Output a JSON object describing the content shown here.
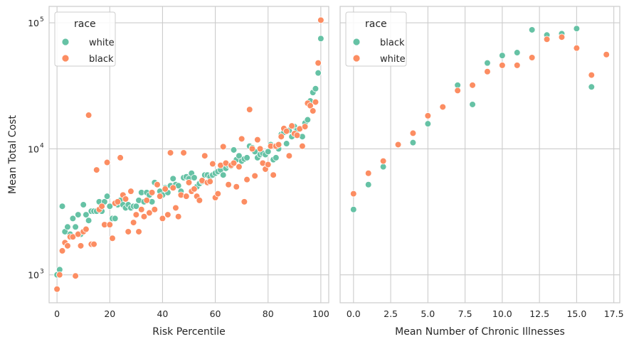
{
  "chart_data": [
    {
      "type": "scatter",
      "xlabel": "Risk Percentile",
      "ylabel": "Mean Total Cost",
      "yscale": "log",
      "xlim": [
        -3,
        103
      ],
      "ylim": [
        600,
        135000
      ],
      "xticks": [
        0,
        20,
        40,
        60,
        80,
        100
      ],
      "yticks": [
        1000,
        10000,
        100000
      ],
      "ytick_labels": [
        {
          "base": "10",
          "exp": "3"
        },
        {
          "base": "10",
          "exp": "4"
        },
        {
          "base": "10",
          "exp": "5"
        }
      ],
      "grid": true,
      "legend": {
        "title": "race",
        "position": "top-left"
      },
      "series": [
        {
          "name": "white",
          "color": "#66c2a5",
          "points": [
            [
              0,
              1000
            ],
            [
              1,
              1100
            ],
            [
              2,
              3500
            ],
            [
              3,
              2200
            ],
            [
              4,
              2400
            ],
            [
              5,
              2100
            ],
            [
              6,
              2800
            ],
            [
              7,
              2400
            ],
            [
              8,
              3000
            ],
            [
              9,
              2100
            ],
            [
              10,
              3600
            ],
            [
              11,
              3000
            ],
            [
              12,
              2700
            ],
            [
              13,
              3200
            ],
            [
              14,
              3200
            ],
            [
              15,
              3200
            ],
            [
              16,
              3800
            ],
            [
              17,
              3200
            ],
            [
              18,
              3800
            ],
            [
              19,
              4200
            ],
            [
              20,
              3500
            ],
            [
              21,
              2800
            ],
            [
              22,
              2800
            ],
            [
              23,
              3600
            ],
            [
              24,
              3900
            ],
            [
              25,
              3600
            ],
            [
              26,
              3400
            ],
            [
              27,
              3600
            ],
            [
              28,
              3400
            ],
            [
              29,
              3500
            ],
            [
              30,
              3500
            ],
            [
              31,
              3900
            ],
            [
              32,
              4500
            ],
            [
              33,
              3800
            ],
            [
              34,
              4500
            ],
            [
              35,
              4300
            ],
            [
              36,
              3800
            ],
            [
              37,
              5400
            ],
            [
              38,
              5200
            ],
            [
              39,
              4600
            ],
            [
              40,
              4300
            ],
            [
              41,
              4900
            ],
            [
              42,
              4500
            ],
            [
              43,
              5100
            ],
            [
              44,
              5800
            ],
            [
              45,
              5200
            ],
            [
              46,
              5100
            ],
            [
              47,
              4600
            ],
            [
              48,
              5900
            ],
            [
              49,
              6000
            ],
            [
              50,
              5800
            ],
            [
              51,
              6400
            ],
            [
              52,
              5900
            ],
            [
              53,
              5000
            ],
            [
              54,
              5300
            ],
            [
              55,
              5500
            ],
            [
              56,
              6200
            ],
            [
              57,
              6200
            ],
            [
              58,
              6000
            ],
            [
              59,
              6200
            ],
            [
              60,
              6400
            ],
            [
              61,
              6600
            ],
            [
              62,
              6800
            ],
            [
              63,
              6200
            ],
            [
              64,
              7000
            ],
            [
              65,
              7400
            ],
            [
              66,
              7300
            ],
            [
              67,
              9800
            ],
            [
              68,
              8200
            ],
            [
              69,
              8800
            ],
            [
              70,
              8000
            ],
            [
              71,
              8300
            ],
            [
              72,
              8500
            ],
            [
              73,
              10500
            ],
            [
              74,
              10200
            ],
            [
              75,
              9500
            ],
            [
              76,
              8500
            ],
            [
              77,
              9000
            ],
            [
              78,
              9200
            ],
            [
              79,
              9000
            ],
            [
              80,
              9500
            ],
            [
              81,
              10800
            ],
            [
              82,
              8200
            ],
            [
              83,
              8500
            ],
            [
              84,
              10000
            ],
            [
              85,
              13000
            ],
            [
              86,
              13500
            ],
            [
              87,
              11000
            ],
            [
              88,
              14000
            ],
            [
              89,
              12500
            ],
            [
              90,
              15000
            ],
            [
              91,
              14000
            ],
            [
              92,
              14500
            ],
            [
              93,
              12500
            ],
            [
              94,
              16000
            ],
            [
              95,
              17000
            ],
            [
              96,
              24000
            ],
            [
              97,
              28000
            ],
            [
              98,
              30000
            ],
            [
              99,
              40000
            ],
            [
              100,
              75000
            ]
          ]
        },
        {
          "name": "black",
          "color": "#fc8d62",
          "points": [
            [
              0,
              770
            ],
            [
              1,
              1000
            ],
            [
              2,
              1550
            ],
            [
              3,
              1800
            ],
            [
              4,
              1700
            ],
            [
              5,
              2000
            ],
            [
              6,
              2000
            ],
            [
              7,
              980
            ],
            [
              8,
              2100
            ],
            [
              9,
              1700
            ],
            [
              10,
              2200
            ],
            [
              11,
              2300
            ],
            [
              12,
              18500
            ],
            [
              13,
              1750
            ],
            [
              14,
              1750
            ],
            [
              15,
              6800
            ],
            [
              16,
              3300
            ],
            [
              17,
              3500
            ],
            [
              18,
              2500
            ],
            [
              19,
              7800
            ],
            [
              20,
              2500
            ],
            [
              21,
              1950
            ],
            [
              22,
              3700
            ],
            [
              23,
              3800
            ],
            [
              24,
              8500
            ],
            [
              25,
              4300
            ],
            [
              26,
              4000
            ],
            [
              27,
              2200
            ],
            [
              28,
              4600
            ],
            [
              29,
              2600
            ],
            [
              30,
              3000
            ],
            [
              31,
              2200
            ],
            [
              32,
              3300
            ],
            [
              33,
              2900
            ],
            [
              34,
              3900
            ],
            [
              35,
              3100
            ],
            [
              36,
              4500
            ],
            [
              37,
              3300
            ],
            [
              38,
              5200
            ],
            [
              39,
              4200
            ],
            [
              40,
              2800
            ],
            [
              41,
              4800
            ],
            [
              42,
              3000
            ],
            [
              43,
              9300
            ],
            [
              44,
              4900
            ],
            [
              45,
              3400
            ],
            [
              46,
              2900
            ],
            [
              47,
              4300
            ],
            [
              48,
              9300
            ],
            [
              49,
              4200
            ],
            [
              50,
              5400
            ],
            [
              51,
              4600
            ],
            [
              52,
              4800
            ],
            [
              53,
              4200
            ],
            [
              54,
              3900
            ],
            [
              55,
              5600
            ],
            [
              56,
              8800
            ],
            [
              57,
              5400
            ],
            [
              58,
              5500
            ],
            [
              59,
              7600
            ],
            [
              60,
              4100
            ],
            [
              61,
              4400
            ],
            [
              62,
              7400
            ],
            [
              63,
              10400
            ],
            [
              64,
              7700
            ],
            [
              65,
              5200
            ],
            [
              66,
              7400
            ],
            [
              67,
              7700
            ],
            [
              68,
              5000
            ],
            [
              69,
              7200
            ],
            [
              70,
              12000
            ],
            [
              71,
              3800
            ],
            [
              72,
              5700
            ],
            [
              73,
              20500
            ],
            [
              74,
              10000
            ],
            [
              75,
              6100
            ],
            [
              76,
              11800
            ],
            [
              77,
              10000
            ],
            [
              78,
              7700
            ],
            [
              79,
              6900
            ],
            [
              80,
              7500
            ],
            [
              81,
              10500
            ],
            [
              82,
              6200
            ],
            [
              83,
              10500
            ],
            [
              84,
              10800
            ],
            [
              85,
              12500
            ],
            [
              86,
              14500
            ],
            [
              87,
              13800
            ],
            [
              88,
              8800
            ],
            [
              89,
              15200
            ],
            [
              90,
              13200
            ],
            [
              91,
              12800
            ],
            [
              92,
              14400
            ],
            [
              93,
              10500
            ],
            [
              94,
              15000
            ],
            [
              95,
              23000
            ],
            [
              96,
              22000
            ],
            [
              97,
              20000
            ],
            [
              98,
              23500
            ],
            [
              99,
              48000
            ],
            [
              100,
              105000
            ]
          ]
        }
      ]
    },
    {
      "type": "scatter",
      "xlabel": "Mean Number of Chronic Illnesses",
      "ylabel": "",
      "yscale": "log",
      "sharey": true,
      "xlim": [
        -0.9,
        17.9
      ],
      "ylim": [
        600,
        135000
      ],
      "xticks": [
        0,
        2.5,
        5,
        7.5,
        10,
        12.5,
        15,
        17.5
      ],
      "xtick_labels": [
        "0.0",
        "2.5",
        "5.0",
        "7.5",
        "10.0",
        "12.5",
        "15.0",
        "17.5"
      ],
      "yticks": [
        1000,
        10000,
        100000
      ],
      "grid": true,
      "legend": {
        "title": "race",
        "position": "top-left"
      },
      "series": [
        {
          "name": "black",
          "color": "#66c2a5",
          "points": [
            [
              0,
              3300
            ],
            [
              1,
              5200
            ],
            [
              2,
              7200
            ],
            [
              4,
              11200
            ],
            [
              5,
              15800
            ],
            [
              7,
              32000
            ],
            [
              8,
              22500
            ],
            [
              9,
              48000
            ],
            [
              10,
              55000
            ],
            [
              11,
              58000
            ],
            [
              12,
              88000
            ],
            [
              13,
              80000
            ],
            [
              14,
              82000
            ],
            [
              15,
              90000
            ],
            [
              16,
              31000
            ]
          ]
        },
        {
          "name": "white",
          "color": "#fc8d62",
          "points": [
            [
              0,
              4400
            ],
            [
              1,
              6400
            ],
            [
              2,
              8000
            ],
            [
              3,
              10800
            ],
            [
              4,
              13300
            ],
            [
              5,
              18300
            ],
            [
              6,
              21500
            ],
            [
              7,
              29000
            ],
            [
              8,
              32000
            ],
            [
              9,
              41000
            ],
            [
              10,
              46000
            ],
            [
              11,
              46000
            ],
            [
              12,
              53000
            ],
            [
              13,
              74000
            ],
            [
              14,
              77000
            ],
            [
              15,
              63000
            ],
            [
              16,
              38500
            ],
            [
              17,
              56000
            ]
          ]
        }
      ]
    }
  ]
}
